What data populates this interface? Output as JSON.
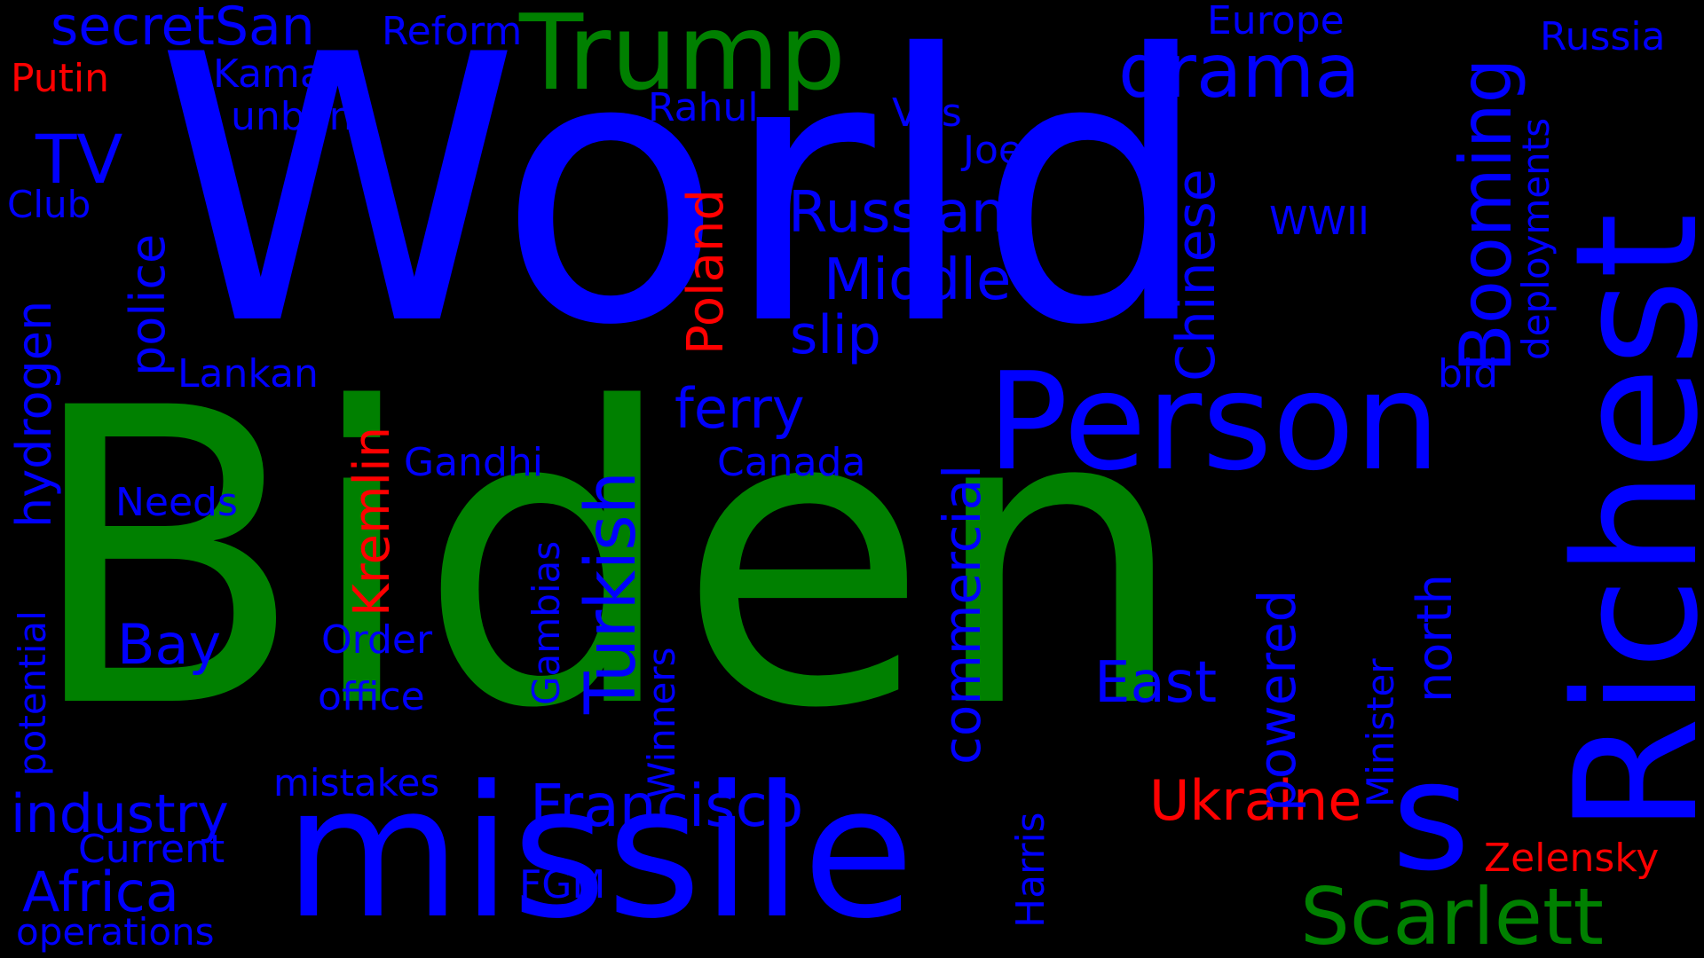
{
  "word_cloud": {
    "background_color": "#000000",
    "palette": {
      "blue": "#0000ff",
      "green": "#008000",
      "red": "#ff0000"
    },
    "words": {
      "biden": "Biden",
      "world": "World",
      "missile": "missile",
      "person": "Person",
      "richest": "Richest",
      "trump": "Trump",
      "s": "s",
      "scarlett": "Scarlett",
      "booming": "Booming",
      "drama": "drama",
      "turkish": "Turkish",
      "commercial": "commercial",
      "francisco": "Francisco",
      "russian": "Russian",
      "middle": "Middle",
      "chinese": "Chinese",
      "ukraine": "Ukraine",
      "east": "East",
      "industry": "industry",
      "africa": "Africa",
      "powered": "powered",
      "kremlin": "Kremlin",
      "poland": "Poland",
      "ferry": "ferry",
      "slip": "slip",
      "secretsan": "secretSan",
      "police": "police",
      "hydrogen": "hydrogen",
      "north": "north",
      "bay": "Bay",
      "tv": "TV",
      "zelensky": "Zelensky",
      "minister": "Minister",
      "putin": "Putin",
      "reform": "Reform",
      "europe": "Europe",
      "russia": "Russia",
      "kamala": "Kamala",
      "unban": "unban",
      "rahul": "Rahul",
      "vps": "VPs",
      "joe": "Joe",
      "club": "Club",
      "wwii": "WWII",
      "deployments": "deployments",
      "lankan": "Lankan",
      "bid": "bid",
      "gandhi": "Gandhi",
      "canada": "Canada",
      "needs": "Needs",
      "potential": "potential",
      "gambias": "Gambias",
      "winners": "Winners",
      "order": "Order",
      "office": "office",
      "mistakes": "mistakes",
      "current": "Current",
      "operations": "operations",
      "fgm": "FGM",
      "harris": "Harris"
    }
  }
}
